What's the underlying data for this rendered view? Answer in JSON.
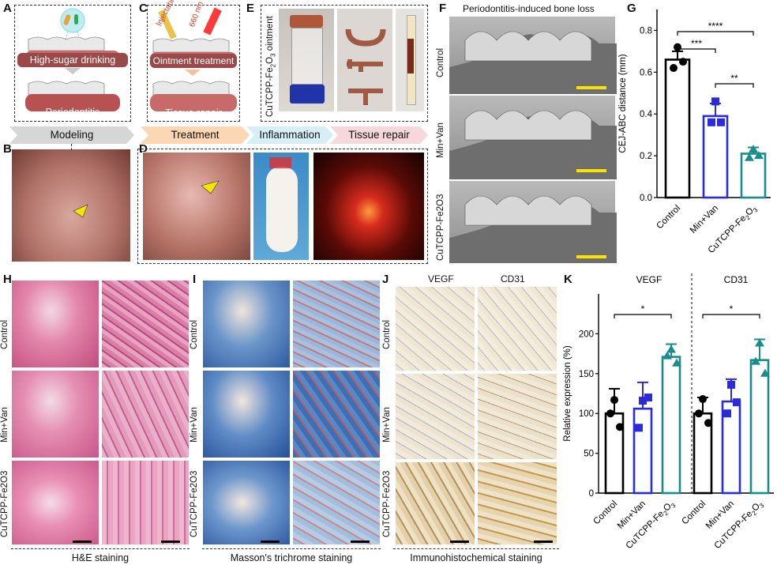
{
  "panels": {
    "A": {
      "letter": "A",
      "step1": "High-sugar drinking",
      "step2": "Periodontitis",
      "stage": "Modeling"
    },
    "B": {
      "letter": "B"
    },
    "C": {
      "letter": "C",
      "injectable": "Injectable",
      "laser": "660 nm",
      "step1": "Ointment treatment",
      "step2": "Tissue repair",
      "stage": "Treatment"
    },
    "D": {
      "letter": "D"
    },
    "E": {
      "letter": "E",
      "label": "CuTCPP-Fe",
      "sub": "2",
      "label2": "O",
      "sub2": "3",
      "label3": " ointment"
    },
    "stages": [
      "Inflammation",
      "Tissue repair"
    ],
    "F": {
      "letter": "F",
      "title": "Periodontitis-induced bone loss",
      "rows": [
        "Control",
        "Min+Van",
        "CuTCPP-Fe2O3"
      ]
    },
    "G": {
      "letter": "G"
    },
    "H": {
      "letter": "H",
      "caption": "H&E staining",
      "rows": [
        "Control",
        "Min+Van",
        "CuTCPP-Fe2O3"
      ]
    },
    "I": {
      "letter": "I",
      "caption": "Masson's trichrome staining",
      "rows": [
        "Control",
        "Min+Van",
        "CuTCPP-Fe2O3"
      ]
    },
    "J": {
      "letter": "J",
      "caption": "Immunohistochemical  staining",
      "cols": [
        "VEGF",
        "CD31"
      ],
      "rows": [
        "Control",
        "Min+Van",
        "CuTCPP-Fe2O3"
      ]
    },
    "K": {
      "letter": "K"
    }
  },
  "chart_data": [
    {
      "type": "bar",
      "panel": "G",
      "categories": [
        "Control",
        "Min+Van",
        "CuTCPP-Fe2O3"
      ],
      "values": [
        0.66,
        0.39,
        0.21
      ],
      "errors": [
        0.04,
        0.06,
        0.03
      ],
      "points": [
        [
          0.72,
          0.65,
          0.62
        ],
        [
          0.46,
          0.36,
          0.36
        ],
        [
          0.23,
          0.2,
          0.19
        ]
      ],
      "ylabel": "CEJ-ABC distance (mm)",
      "ylim": [
        0,
        0.9
      ],
      "yticks": [
        0.0,
        0.2,
        0.4,
        0.6,
        0.8
      ],
      "colors": [
        "#000000",
        "#2b2bd9",
        "#1a8c8c"
      ],
      "significance": [
        {
          "from": 0,
          "to": 1,
          "label": "***"
        },
        {
          "from": 0,
          "to": 2,
          "label": "****"
        },
        {
          "from": 1,
          "to": 2,
          "label": "**"
        }
      ]
    },
    {
      "type": "bar",
      "panel": "K",
      "groups": [
        "VEGF",
        "CD31"
      ],
      "categories": [
        "Control",
        "Min+Van",
        "CuTCPP-Fe2O3",
        "Control",
        "Min+Van",
        "CuTCPP-Fe2O3"
      ],
      "values": [
        100,
        106,
        171,
        100,
        115,
        167
      ],
      "errors": [
        31,
        33,
        16,
        20,
        28,
        26
      ],
      "points": [
        [
          117,
          83,
          100
        ],
        [
          116,
          120,
          82
        ],
        [
          180,
          163,
          172
        ],
        [
          118,
          88,
          100
        ],
        [
          136,
          114,
          100
        ],
        [
          188,
          150,
          165
        ]
      ],
      "ylabel": "Relative expression (%)",
      "ylim": [
        0,
        250
      ],
      "yticks": [
        0,
        50,
        100,
        150,
        200
      ],
      "colors": [
        "#000000",
        "#2b2bd9",
        "#1a8c8c",
        "#000000",
        "#2b2bd9",
        "#1a8c8c"
      ],
      "significance": [
        {
          "from": 0,
          "to": 2,
          "label": "*"
        },
        {
          "from": 3,
          "to": 5,
          "label": "*"
        }
      ]
    }
  ]
}
